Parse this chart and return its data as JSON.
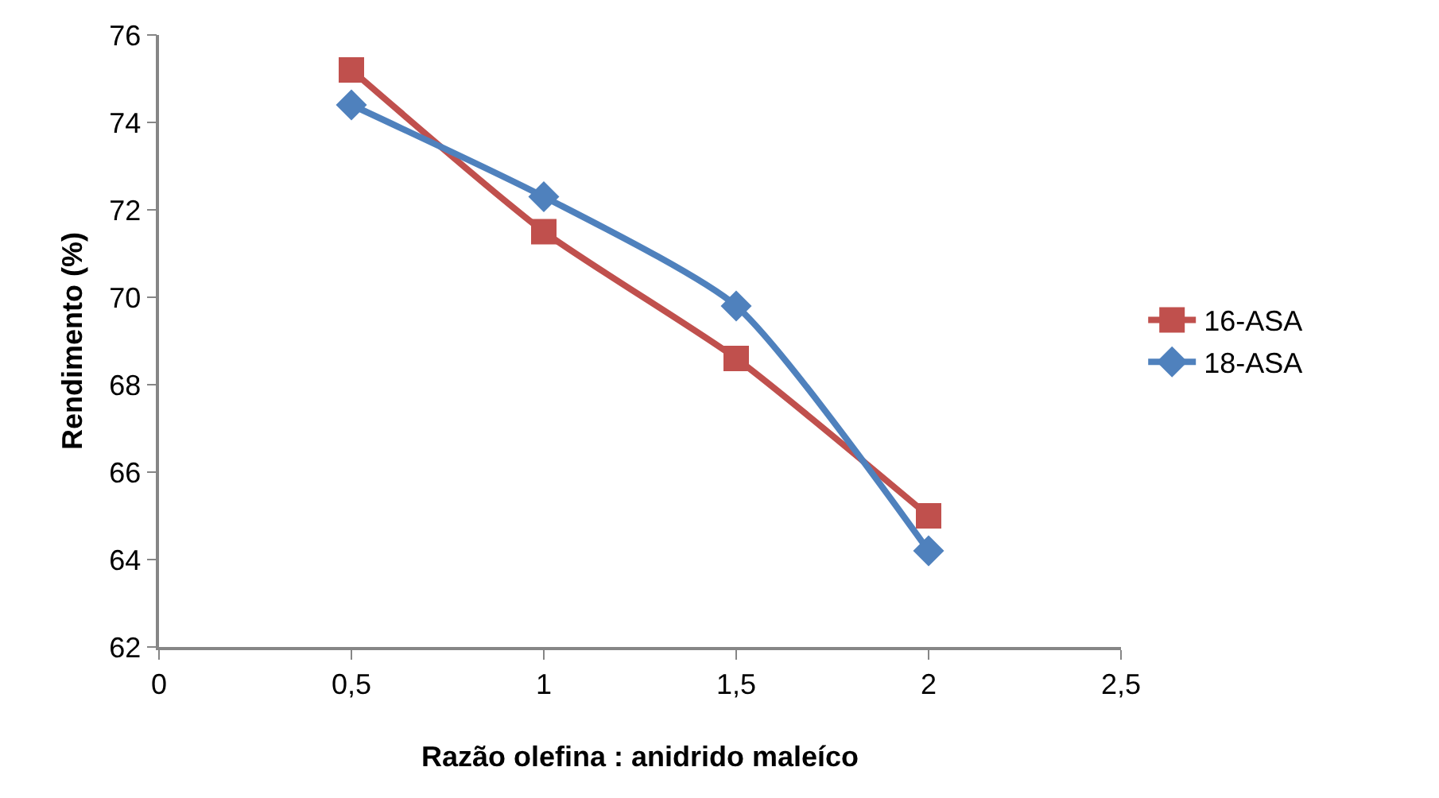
{
  "chart_data": {
    "type": "line",
    "xlabel": "Razão olefina : anidrido maleíco",
    "ylabel": "Rendimento (%)",
    "x": [
      0.5,
      1,
      1.5,
      2
    ],
    "series": [
      {
        "name": "16-ASA",
        "color": "#c0504d",
        "marker": "square",
        "values": [
          75.2,
          71.5,
          68.6,
          65.0
        ]
      },
      {
        "name": "18-ASA",
        "color": "#4f81bd",
        "marker": "diamond",
        "values": [
          74.4,
          72.3,
          69.8,
          64.2
        ]
      }
    ],
    "xlim": [
      0,
      2.5
    ],
    "xticks": [
      0,
      {
        "value": 0.5,
        "label": "0,5"
      },
      1,
      {
        "value": 1.5,
        "label": "1,5"
      },
      2,
      {
        "value": 2.5,
        "label": "2,5"
      }
    ],
    "ylim": [
      62,
      76
    ],
    "yticks": [
      62,
      64,
      66,
      68,
      70,
      72,
      74,
      76
    ],
    "legend": "right",
    "line_style": "solid"
  }
}
